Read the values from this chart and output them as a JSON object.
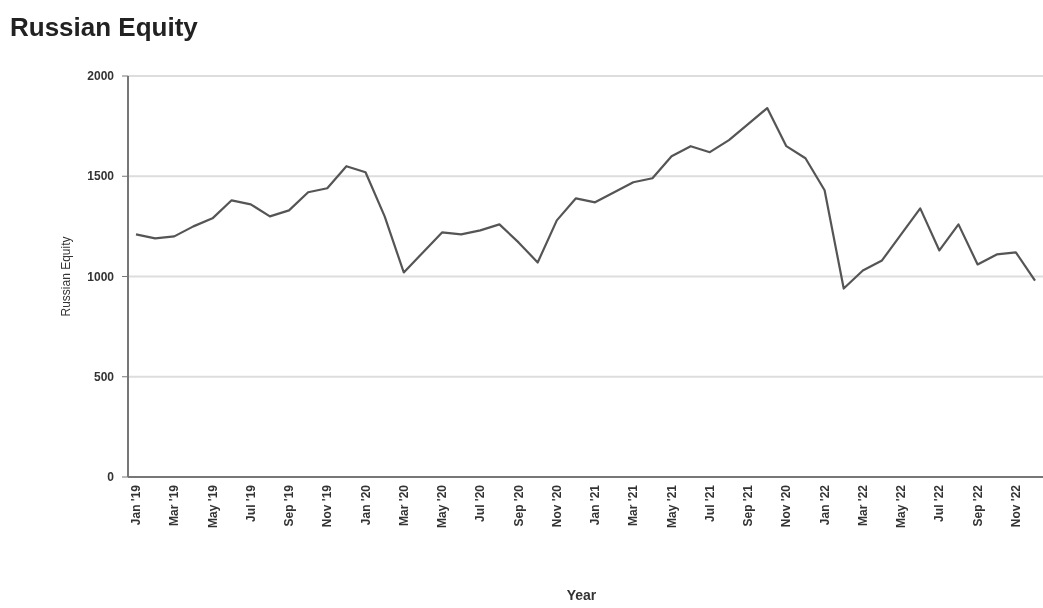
{
  "chart_data": {
    "type": "line",
    "title": "Russian Equity",
    "xlabel": "Year",
    "ylabel": "Russian Equity",
    "categories": [
      "Jan '19",
      null,
      "Mar '19",
      null,
      "May '19",
      null,
      "Jul '19",
      null,
      "Sep '19",
      null,
      "Nov '19",
      null,
      "Jan '20",
      null,
      "Mar '20",
      null,
      "May '20",
      null,
      "Jul '20",
      null,
      "Sep '20",
      null,
      "Nov '20",
      null,
      "Jan '21",
      null,
      "Mar '21",
      null,
      "May '21",
      null,
      "Jul '21",
      null,
      "Sep '21",
      null,
      "Nov '20",
      null,
      "Jan '22",
      null,
      "Mar '22",
      null,
      "May '22",
      null,
      "Jul '22",
      null,
      "Sep '22",
      null,
      "Nov '22",
      null
    ],
    "series": [
      {
        "color": "#555555",
        "values": [
          1210,
          1190,
          1200,
          1250,
          1290,
          1380,
          1360,
          1300,
          1330,
          1420,
          1440,
          1550,
          1520,
          1300,
          1020,
          1120,
          1220,
          1210,
          1230,
          1260,
          1170,
          1070,
          1280,
          1390,
          1370,
          1420,
          1470,
          1490,
          1600,
          1650,
          1620,
          1680,
          1760,
          1840,
          1650,
          1590,
          1430,
          940,
          1030,
          1080,
          1210,
          1340,
          1130,
          1260,
          1060,
          1110,
          1120,
          980
        ]
      }
    ],
    "ylim": [
      0,
      2000
    ],
    "yticks": [
      0,
      500,
      1000,
      1500,
      2000
    ],
    "grid": "y",
    "marker": "none",
    "line_style": "solid"
  }
}
